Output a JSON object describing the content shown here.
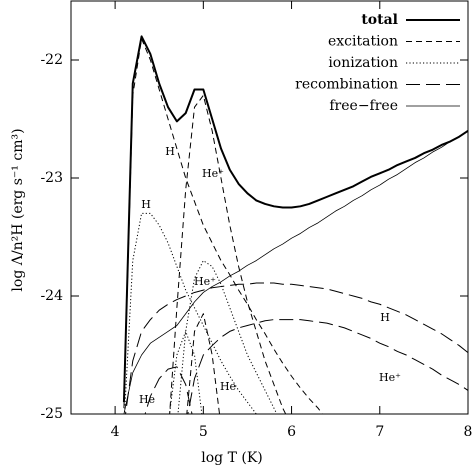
{
  "chart_data": {
    "type": "line",
    "x_label": "log T (K)",
    "y_label": "log Λ/n²H (erg s⁻¹ cm³)",
    "xlim": [
      3.5,
      8
    ],
    "ylim": [
      -25,
      -21.5
    ],
    "xticks": [
      4,
      5,
      6,
      7,
      8
    ],
    "yticks": [
      -22,
      -23,
      -24,
      -25
    ],
    "legend": "upper right",
    "x": [
      4.0,
      4.1,
      4.2,
      4.3,
      4.4,
      4.5,
      4.6,
      4.7,
      4.8,
      4.9,
      5.0,
      5.1,
      5.2,
      5.3,
      5.4,
      5.5,
      5.6,
      5.7,
      5.8,
      5.9,
      6.0,
      6.1,
      6.2,
      6.3,
      6.4,
      6.5,
      6.6,
      6.7,
      6.8,
      6.9,
      7.0,
      7.1,
      7.2,
      7.3,
      7.4,
      7.5,
      7.6,
      7.7,
      7.8,
      7.9,
      8.0
    ],
    "series": [
      {
        "name": "total",
        "color": "#000000",
        "dash": "solid-thick",
        "curves": [
          {
            "values": [
              null,
              -24.9,
              -22.2,
              -21.8,
              -21.95,
              -22.2,
              -22.4,
              -22.52,
              -22.45,
              -22.25,
              -22.25,
              -22.5,
              -22.75,
              -22.93,
              -23.05,
              -23.13,
              -23.19,
              -23.22,
              -23.24,
              -23.25,
              -23.25,
              -23.24,
              -23.22,
              -23.19,
              -23.16,
              -23.13,
              -23.1,
              -23.07,
              -23.03,
              -22.99,
              -22.96,
              -22.93,
              -22.89,
              -22.86,
              -22.83,
              -22.79,
              -22.76,
              -22.72,
              -22.69,
              -22.65,
              -22.6
            ]
          }
        ]
      },
      {
        "name": "excitation",
        "color": "#000000",
        "dash": "dashed",
        "curves": [
          {
            "label": "H",
            "values": [
              null,
              -24.95,
              -22.3,
              -21.82,
              -22.0,
              -22.25,
              -22.5,
              -22.75,
              -23.0,
              -23.2,
              -23.4,
              -23.55,
              -23.7,
              -23.82,
              -23.95,
              -24.07,
              -24.2,
              -24.32,
              -24.45,
              -24.57,
              -24.68,
              -24.78,
              -24.87,
              -24.95,
              -25.05,
              null,
              null,
              null,
              null,
              null,
              null,
              null,
              null,
              null,
              null,
              null,
              null,
              null,
              null,
              null,
              null
            ]
          },
          {
            "label": "He⁺",
            "values": [
              null,
              null,
              null,
              null,
              null,
              null,
              -25.2,
              -24.1,
              -23.1,
              -22.4,
              -22.3,
              -22.6,
              -23.0,
              -23.4,
              -23.75,
              -24.05,
              -24.3,
              -24.55,
              -24.75,
              -24.95,
              -25.1,
              null,
              null,
              null,
              null,
              null,
              null,
              null,
              null,
              null,
              null,
              null,
              null,
              null,
              null,
              null,
              null,
              null,
              null,
              null,
              null
            ]
          },
          {
            "values": [
              null,
              null,
              null,
              null,
              null,
              null,
              null,
              null,
              -25.1,
              -24.3,
              -24.15,
              -24.5,
              -25.1,
              null,
              null,
              null,
              null,
              null,
              null,
              null,
              null,
              null,
              null,
              null,
              null,
              null,
              null,
              null,
              null,
              null,
              null,
              null,
              null,
              null,
              null,
              null,
              null,
              null,
              null,
              null,
              null
            ]
          }
        ]
      },
      {
        "name": "ionization",
        "color": "#000000",
        "dash": "dotted",
        "curves": [
          {
            "label": "H",
            "values": [
              null,
              -25.1,
              -23.7,
              -23.3,
              -23.3,
              -23.4,
              -23.55,
              -23.75,
              -23.95,
              -24.1,
              -24.25,
              -24.4,
              -24.55,
              -24.68,
              -24.8,
              -24.9,
              -25.0,
              -25.1,
              null,
              null,
              null,
              null,
              null,
              null,
              null,
              null,
              null,
              null,
              null,
              null,
              null,
              null,
              null,
              null,
              null,
              null,
              null,
              null,
              null,
              null,
              null
            ]
          },
          {
            "label": "He⁺",
            "values": [
              null,
              null,
              null,
              null,
              null,
              null,
              null,
              -25.1,
              -24.3,
              -23.85,
              -23.7,
              -23.75,
              -23.9,
              -24.1,
              -24.3,
              -24.5,
              -24.65,
              -24.8,
              -24.95,
              -25.1,
              null,
              null,
              null,
              null,
              null,
              null,
              null,
              null,
              null,
              null,
              null,
              null,
              null,
              null,
              null,
              null,
              null,
              null,
              null,
              null,
              null
            ]
          },
          {
            "label": "He",
            "values": [
              null,
              null,
              null,
              null,
              null,
              null,
              -25.1,
              -24.5,
              -24.3,
              -24.5,
              -25.1,
              null,
              null,
              null,
              null,
              null,
              null,
              null,
              null,
              null,
              null,
              null,
              null,
              null,
              null,
              null,
              null,
              null,
              null,
              null,
              null,
              null,
              null,
              null,
              null,
              null,
              null,
              null,
              null,
              null,
              null
            ]
          }
        ]
      },
      {
        "name": "recombination",
        "color": "#000000",
        "dash": "long-dashed",
        "curves": [
          {
            "label": "H",
            "values": [
              null,
              -25.1,
              -24.55,
              -24.3,
              -24.2,
              -24.12,
              -24.07,
              -24.03,
              -24.0,
              -23.97,
              -23.95,
              -23.93,
              -23.92,
              -23.91,
              -23.9,
              -23.9,
              -23.89,
              -23.89,
              -23.89,
              -23.9,
              -23.9,
              -23.91,
              -23.92,
              -23.93,
              -23.94,
              -23.96,
              -23.98,
              -24.0,
              -24.02,
              -24.05,
              -24.07,
              -24.1,
              -24.13,
              -24.16,
              -24.2,
              -24.24,
              -24.28,
              -24.32,
              -24.37,
              -24.42,
              -24.48
            ]
          },
          {
            "label": "He⁺",
            "values": [
              null,
              null,
              null,
              null,
              null,
              null,
              null,
              null,
              -25.1,
              -24.7,
              -24.5,
              -24.42,
              -24.35,
              -24.3,
              -24.27,
              -24.25,
              -24.23,
              -24.21,
              -24.2,
              -24.2,
              -24.2,
              -24.2,
              -24.21,
              -24.22,
              -24.23,
              -24.25,
              -24.27,
              -24.3,
              -24.33,
              -24.36,
              -24.4,
              -24.43,
              -24.47,
              -24.5,
              -24.54,
              -24.58,
              -24.62,
              -24.67,
              -24.71,
              -24.75,
              -24.8
            ]
          },
          {
            "label": "He",
            "values": [
              null,
              null,
              null,
              -25.1,
              -24.85,
              -24.7,
              -24.62,
              -24.6,
              -24.75,
              -25.1,
              null,
              null,
              null,
              null,
              null,
              null,
              null,
              null,
              null,
              null,
              null,
              null,
              null,
              null,
              null,
              null,
              null,
              null,
              null,
              null,
              null,
              null,
              null,
              null,
              null,
              null,
              null,
              null,
              null,
              null,
              null
            ]
          }
        ]
      },
      {
        "name": "free−free",
        "color": "#000000",
        "dash": "solid",
        "curves": [
          {
            "values": [
              null,
              -25.0,
              -24.65,
              -24.5,
              -24.4,
              -24.35,
              -24.3,
              -24.25,
              -24.15,
              -24.05,
              -23.97,
              -23.92,
              -23.88,
              -23.83,
              -23.79,
              -23.74,
              -23.7,
              -23.65,
              -23.6,
              -23.56,
              -23.51,
              -23.47,
              -23.42,
              -23.38,
              -23.33,
              -23.28,
              -23.24,
              -23.19,
              -23.15,
              -23.1,
              -23.06,
              -23.01,
              -22.97,
              -22.92,
              -22.87,
              -22.83,
              -22.78,
              -22.74,
              -22.69,
              -22.65,
              -22.6
            ]
          }
        ]
      }
    ]
  }
}
